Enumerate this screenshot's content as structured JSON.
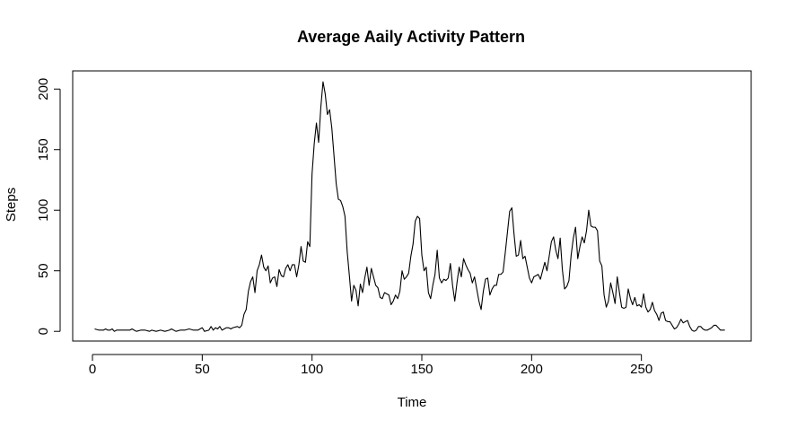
{
  "chart_data": {
    "type": "line",
    "title": "Average Aaily Activity Pattern",
    "xlabel": "Time",
    "ylabel": "Steps",
    "xlim": [
      -9,
      300
    ],
    "ylim": [
      -8,
      215
    ],
    "xticks": [
      0,
      50,
      100,
      150,
      200,
      250
    ],
    "yticks": [
      0,
      50,
      100,
      150,
      200
    ],
    "grid": false,
    "legend": "none",
    "line_color": "#000000",
    "series": [
      {
        "keypoints": [
          [
            1,
            2
          ],
          [
            3,
            1
          ],
          [
            5,
            1
          ],
          [
            6,
            2
          ],
          [
            7,
            1
          ],
          [
            8,
            1
          ],
          [
            9,
            2
          ],
          [
            10,
            0
          ],
          [
            11,
            1
          ],
          [
            13,
            1
          ],
          [
            15,
            1
          ],
          [
            17,
            1
          ],
          [
            18,
            2
          ],
          [
            19,
            1
          ],
          [
            20,
            0
          ],
          [
            22,
            1
          ],
          [
            24,
            1
          ],
          [
            26,
            0
          ],
          [
            27,
            1
          ],
          [
            29,
            0
          ],
          [
            31,
            1
          ],
          [
            33,
            0
          ],
          [
            35,
            1
          ],
          [
            36,
            2
          ],
          [
            38,
            0
          ],
          [
            40,
            1
          ],
          [
            42,
            1
          ],
          [
            44,
            2
          ],
          [
            46,
            1
          ],
          [
            48,
            1
          ],
          [
            50,
            3
          ],
          [
            51,
            0
          ],
          [
            53,
            1
          ],
          [
            54,
            4
          ],
          [
            55,
            1
          ],
          [
            56,
            3
          ],
          [
            57,
            2
          ],
          [
            58,
            4
          ],
          [
            59,
            1
          ],
          [
            61,
            3
          ],
          [
            62,
            3
          ],
          [
            63,
            2
          ],
          [
            64,
            3
          ],
          [
            66,
            4
          ],
          [
            67,
            3
          ],
          [
            68,
            5
          ],
          [
            69,
            14
          ],
          [
            70,
            18
          ],
          [
            71,
            33
          ],
          [
            72,
            41
          ],
          [
            73,
            45
          ],
          [
            74,
            32
          ],
          [
            75,
            50
          ],
          [
            76,
            55
          ],
          [
            77,
            63
          ],
          [
            78,
            53
          ],
          [
            79,
            50
          ],
          [
            80,
            54
          ],
          [
            81,
            40
          ],
          [
            82,
            44
          ],
          [
            83,
            45
          ],
          [
            84,
            37
          ],
          [
            85,
            51
          ],
          [
            86,
            46
          ],
          [
            87,
            45
          ],
          [
            88,
            52
          ],
          [
            89,
            55
          ],
          [
            90,
            50
          ],
          [
            91,
            55
          ],
          [
            92,
            55
          ],
          [
            93,
            45
          ],
          [
            94,
            55
          ],
          [
            95,
            70
          ],
          [
            96,
            58
          ],
          [
            97,
            57
          ],
          [
            98,
            74
          ],
          [
            99,
            70
          ],
          [
            100,
            130
          ],
          [
            101,
            155
          ],
          [
            102,
            172
          ],
          [
            103,
            156
          ],
          [
            104,
            185
          ],
          [
            105,
            206
          ],
          [
            106,
            196
          ],
          [
            107,
            179
          ],
          [
            108,
            183
          ],
          [
            109,
            168
          ],
          [
            110,
            145
          ],
          [
            111,
            122
          ],
          [
            112,
            109
          ],
          [
            113,
            108
          ],
          [
            114,
            103
          ],
          [
            115,
            95
          ],
          [
            116,
            66
          ],
          [
            117,
            46
          ],
          [
            118,
            25
          ],
          [
            119,
            38
          ],
          [
            120,
            34
          ],
          [
            121,
            21
          ],
          [
            122,
            39
          ],
          [
            123,
            32
          ],
          [
            124,
            44
          ],
          [
            125,
            53
          ],
          [
            126,
            38
          ],
          [
            127,
            52
          ],
          [
            128,
            45
          ],
          [
            129,
            38
          ],
          [
            130,
            36
          ],
          [
            131,
            28
          ],
          [
            132,
            27
          ],
          [
            133,
            32
          ],
          [
            134,
            31
          ],
          [
            135,
            30
          ],
          [
            136,
            22
          ],
          [
            137,
            25
          ],
          [
            138,
            30
          ],
          [
            139,
            27
          ],
          [
            140,
            33
          ],
          [
            141,
            50
          ],
          [
            142,
            43
          ],
          [
            143,
            45
          ],
          [
            144,
            48
          ],
          [
            145,
            62
          ],
          [
            146,
            72
          ],
          [
            147,
            91
          ],
          [
            148,
            95
          ],
          [
            149,
            93
          ],
          [
            150,
            63
          ],
          [
            151,
            50
          ],
          [
            152,
            53
          ],
          [
            153,
            32
          ],
          [
            154,
            27
          ],
          [
            155,
            38
          ],
          [
            156,
            47
          ],
          [
            157,
            67
          ],
          [
            158,
            44
          ],
          [
            159,
            40
          ],
          [
            160,
            43
          ],
          [
            161,
            42
          ],
          [
            162,
            44
          ],
          [
            163,
            56
          ],
          [
            164,
            38
          ],
          [
            165,
            25
          ],
          [
            166,
            40
          ],
          [
            167,
            53
          ],
          [
            168,
            45
          ],
          [
            169,
            60
          ],
          [
            170,
            55
          ],
          [
            171,
            51
          ],
          [
            172,
            48
          ],
          [
            173,
            40
          ],
          [
            174,
            45
          ],
          [
            175,
            35
          ],
          [
            176,
            25
          ],
          [
            177,
            18
          ],
          [
            178,
            33
          ],
          [
            179,
            43
          ],
          [
            180,
            44
          ],
          [
            181,
            30
          ],
          [
            182,
            35
          ],
          [
            183,
            38
          ],
          [
            184,
            38
          ],
          [
            185,
            47
          ],
          [
            186,
            47
          ],
          [
            187,
            49
          ],
          [
            188,
            65
          ],
          [
            189,
            82
          ],
          [
            190,
            99
          ],
          [
            191,
            102
          ],
          [
            192,
            80
          ],
          [
            193,
            62
          ],
          [
            194,
            63
          ],
          [
            195,
            75
          ],
          [
            196,
            60
          ],
          [
            197,
            62
          ],
          [
            198,
            53
          ],
          [
            199,
            44
          ],
          [
            200,
            40
          ],
          [
            201,
            45
          ],
          [
            202,
            46
          ],
          [
            203,
            47
          ],
          [
            204,
            43
          ],
          [
            205,
            50
          ],
          [
            206,
            57
          ],
          [
            207,
            50
          ],
          [
            208,
            62
          ],
          [
            209,
            74
          ],
          [
            210,
            78
          ],
          [
            211,
            67
          ],
          [
            212,
            60
          ],
          [
            213,
            77
          ],
          [
            214,
            51
          ],
          [
            215,
            35
          ],
          [
            216,
            37
          ],
          [
            217,
            42
          ],
          [
            218,
            63
          ],
          [
            219,
            77
          ],
          [
            220,
            86
          ],
          [
            221,
            60
          ],
          [
            222,
            70
          ],
          [
            223,
            78
          ],
          [
            224,
            73
          ],
          [
            225,
            83
          ],
          [
            226,
            100
          ],
          [
            227,
            87
          ],
          [
            228,
            86
          ],
          [
            229,
            86
          ],
          [
            230,
            83
          ],
          [
            231,
            58
          ],
          [
            232,
            54
          ],
          [
            233,
            30
          ],
          [
            234,
            20
          ],
          [
            235,
            25
          ],
          [
            236,
            40
          ],
          [
            237,
            32
          ],
          [
            238,
            23
          ],
          [
            239,
            45
          ],
          [
            240,
            32
          ],
          [
            241,
            20
          ],
          [
            242,
            19
          ],
          [
            243,
            20
          ],
          [
            244,
            35
          ],
          [
            245,
            27
          ],
          [
            246,
            22
          ],
          [
            247,
            28
          ],
          [
            248,
            21
          ],
          [
            249,
            22
          ],
          [
            250,
            20
          ],
          [
            251,
            31
          ],
          [
            252,
            20
          ],
          [
            253,
            16
          ],
          [
            254,
            18
          ],
          [
            255,
            24
          ],
          [
            256,
            17
          ],
          [
            257,
            14
          ],
          [
            258,
            9
          ],
          [
            259,
            15
          ],
          [
            260,
            16
          ],
          [
            261,
            9
          ],
          [
            262,
            8
          ],
          [
            263,
            8
          ],
          [
            264,
            5
          ],
          [
            265,
            2
          ],
          [
            266,
            3
          ],
          [
            267,
            6
          ],
          [
            268,
            10
          ],
          [
            269,
            7
          ],
          [
            270,
            8
          ],
          [
            271,
            9
          ],
          [
            272,
            4
          ],
          [
            273,
            1
          ],
          [
            274,
            0
          ],
          [
            275,
            1
          ],
          [
            276,
            4
          ],
          [
            277,
            4
          ],
          [
            278,
            2
          ],
          [
            279,
            1
          ],
          [
            280,
            1
          ],
          [
            281,
            2
          ],
          [
            282,
            3
          ],
          [
            283,
            5
          ],
          [
            284,
            5
          ],
          [
            285,
            3
          ],
          [
            286,
            1
          ],
          [
            287,
            1
          ],
          [
            288,
            1
          ]
        ]
      }
    ]
  }
}
